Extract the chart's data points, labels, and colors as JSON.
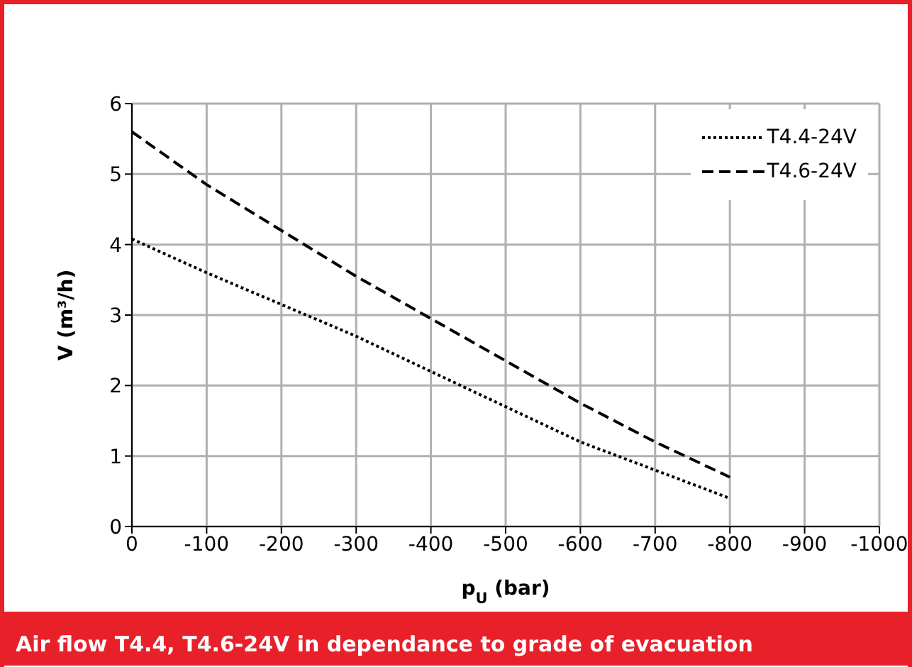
{
  "chart_data": {
    "type": "line",
    "title": "Air flow T4.4, T4.6-24V in dependance to grade of evacuation",
    "xlabel": "p$_{U}$ (bar)",
    "ylabel": "V (m³/h)",
    "x": [
      0,
      -100,
      -200,
      -300,
      -400,
      -500,
      -600,
      -700,
      -800
    ],
    "series": [
      {
        "name": "T4.4-24V",
        "color": "#000000",
        "line_style": "dotted",
        "values": [
          4.08,
          3.6,
          3.15,
          2.7,
          2.2,
          1.7,
          1.2,
          0.8,
          0.4
        ]
      },
      {
        "name": "T4.6-24V",
        "color": "#000000",
        "line_style": "dashed",
        "values": [
          5.6,
          4.85,
          4.2,
          3.55,
          2.95,
          2.35,
          1.75,
          1.2,
          0.7
        ]
      }
    ],
    "xlim": [
      0,
      -1000
    ],
    "xticks": [
      0,
      -100,
      -200,
      -300,
      -400,
      -500,
      -600,
      -700,
      -800,
      -900,
      -1000
    ],
    "ylim": [
      0,
      6
    ],
    "yticks": [
      0,
      1,
      2,
      3,
      4,
      5,
      6
    ],
    "grid": true,
    "legend": "top right",
    "marker": "none"
  }
}
